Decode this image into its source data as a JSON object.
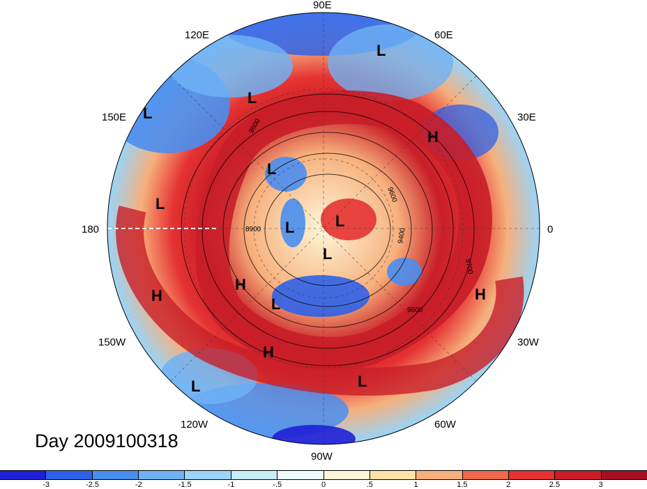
{
  "map": {
    "day_label": "Day 2009100318",
    "longitude_labels": {
      "lon_90e": "90E",
      "lon_60e": "60E",
      "lon_120e": "120E",
      "lon_30e": "30E",
      "lon_150e": "150E",
      "lon_0": "0",
      "lon_180": "180",
      "lon_30w": "30W",
      "lon_150w": "150W",
      "lon_60w": "60W",
      "lon_120w": "120W",
      "lon_90w": "90W"
    },
    "pressure_markers": [
      "L",
      "L",
      "L",
      "L",
      "H",
      "L",
      "L",
      "L",
      "L",
      "H",
      "H",
      "H",
      "L",
      "H",
      "L",
      "L"
    ],
    "contour_labels": [
      "8900",
      "9600",
      "9600",
      "9700",
      "9600",
      "9400"
    ],
    "colorbar": {
      "ticks": [
        "-3",
        "-2.5",
        "-2",
        "-1.5",
        "-1",
        "-.5",
        "0",
        ".5",
        "1",
        "1.5",
        "2",
        "2.5",
        "3"
      ],
      "colors": [
        "#1f1fd6",
        "#2f62e8",
        "#4a8ef0",
        "#6fb2f4",
        "#9ad4f8",
        "#c8eefa",
        "#eefbfd",
        "#fdf6d8",
        "#fde2a6",
        "#f7b07c",
        "#ee6a4a",
        "#e53232",
        "#c81e28",
        "#a51020"
      ]
    },
    "palette": {
      "blue_deep": "#1f1fd6",
      "blue": "#4a8ef0",
      "red": "#c81e28",
      "red_deep": "#a51020",
      "background": "#ffffff"
    }
  }
}
